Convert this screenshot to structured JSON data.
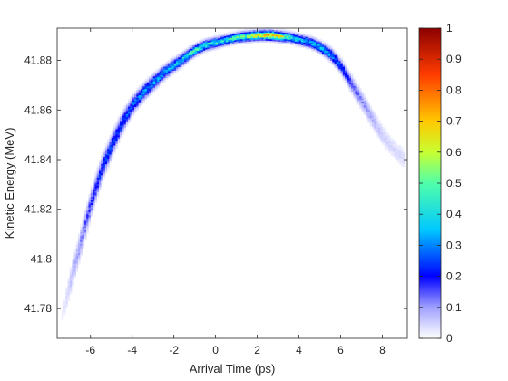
{
  "chart_data": {
    "type": "heatmap",
    "title": "",
    "xlabel": "Arrival Time (ps)",
    "ylabel": "Kinetic Energy (MeV)",
    "xlim": [
      -7.6,
      9.2
    ],
    "ylim": [
      41.768,
      41.893
    ],
    "x_ticks": [
      -6,
      -4,
      -2,
      0,
      2,
      4,
      6,
      8
    ],
    "y_ticks": [
      41.78,
      41.8,
      41.82,
      41.84,
      41.86,
      41.88
    ],
    "y_tick_labels": [
      "41.78",
      "41.8",
      "41.82",
      "41.84",
      "41.86",
      "41.88"
    ],
    "grid": false,
    "colorbar": {
      "colormap": "jet-white",
      "range": [
        0,
        1
      ],
      "ticks": [
        0,
        0.1,
        0.2,
        0.3,
        0.4,
        0.5,
        0.6,
        0.7,
        0.8,
        0.9,
        1
      ],
      "tick_labels": [
        "0",
        "0.1",
        "0.2",
        "0.3",
        "0.4",
        "0.5",
        "0.6",
        "0.7",
        "0.8",
        "0.9",
        "1"
      ]
    },
    "ridge": {
      "description_points_x": [
        -7.4,
        -7.0,
        -6.5,
        -6.0,
        -5.5,
        -5.0,
        -4.5,
        -4.0,
        -3.5,
        -3.0,
        -2.5,
        -2.0,
        -1.5,
        -1.0,
        -0.5,
        0.0,
        0.5,
        1.0,
        1.5,
        2.0,
        2.5,
        3.0,
        3.5,
        4.0,
        4.5,
        5.0,
        5.5,
        6.0,
        6.5,
        7.0,
        7.5,
        8.0,
        8.5,
        9.0
      ],
      "center_energy": [
        41.777,
        41.791,
        41.807,
        41.823,
        41.836,
        41.846,
        41.855,
        41.862,
        41.867,
        41.871,
        41.875,
        41.878,
        41.881,
        41.884,
        41.886,
        41.887,
        41.888,
        41.889,
        41.8895,
        41.8898,
        41.8899,
        41.8895,
        41.889,
        41.888,
        41.887,
        41.885,
        41.882,
        41.877,
        41.87,
        41.863,
        41.856,
        41.849,
        41.844,
        41.84
      ],
      "peak_intensity": [
        0.02,
        0.06,
        0.12,
        0.18,
        0.22,
        0.24,
        0.26,
        0.28,
        0.3,
        0.32,
        0.34,
        0.36,
        0.4,
        0.44,
        0.42,
        0.4,
        0.42,
        0.48,
        0.55,
        0.62,
        0.7,
        0.6,
        0.46,
        0.36,
        0.34,
        0.36,
        0.32,
        0.24,
        0.16,
        0.11,
        0.08,
        0.05,
        0.04,
        0.04
      ],
      "width_mev": [
        0.004,
        0.005,
        0.005,
        0.0045,
        0.0042,
        0.0038,
        0.0034,
        0.003,
        0.0028,
        0.0026,
        0.0024,
        0.0022,
        0.002,
        0.0019,
        0.0018,
        0.0018,
        0.0017,
        0.0017,
        0.0017,
        0.0017,
        0.0017,
        0.0017,
        0.0017,
        0.0018,
        0.0019,
        0.002,
        0.0022,
        0.0025,
        0.003,
        0.0033,
        0.0036,
        0.0038,
        0.004,
        0.004
      ]
    }
  }
}
